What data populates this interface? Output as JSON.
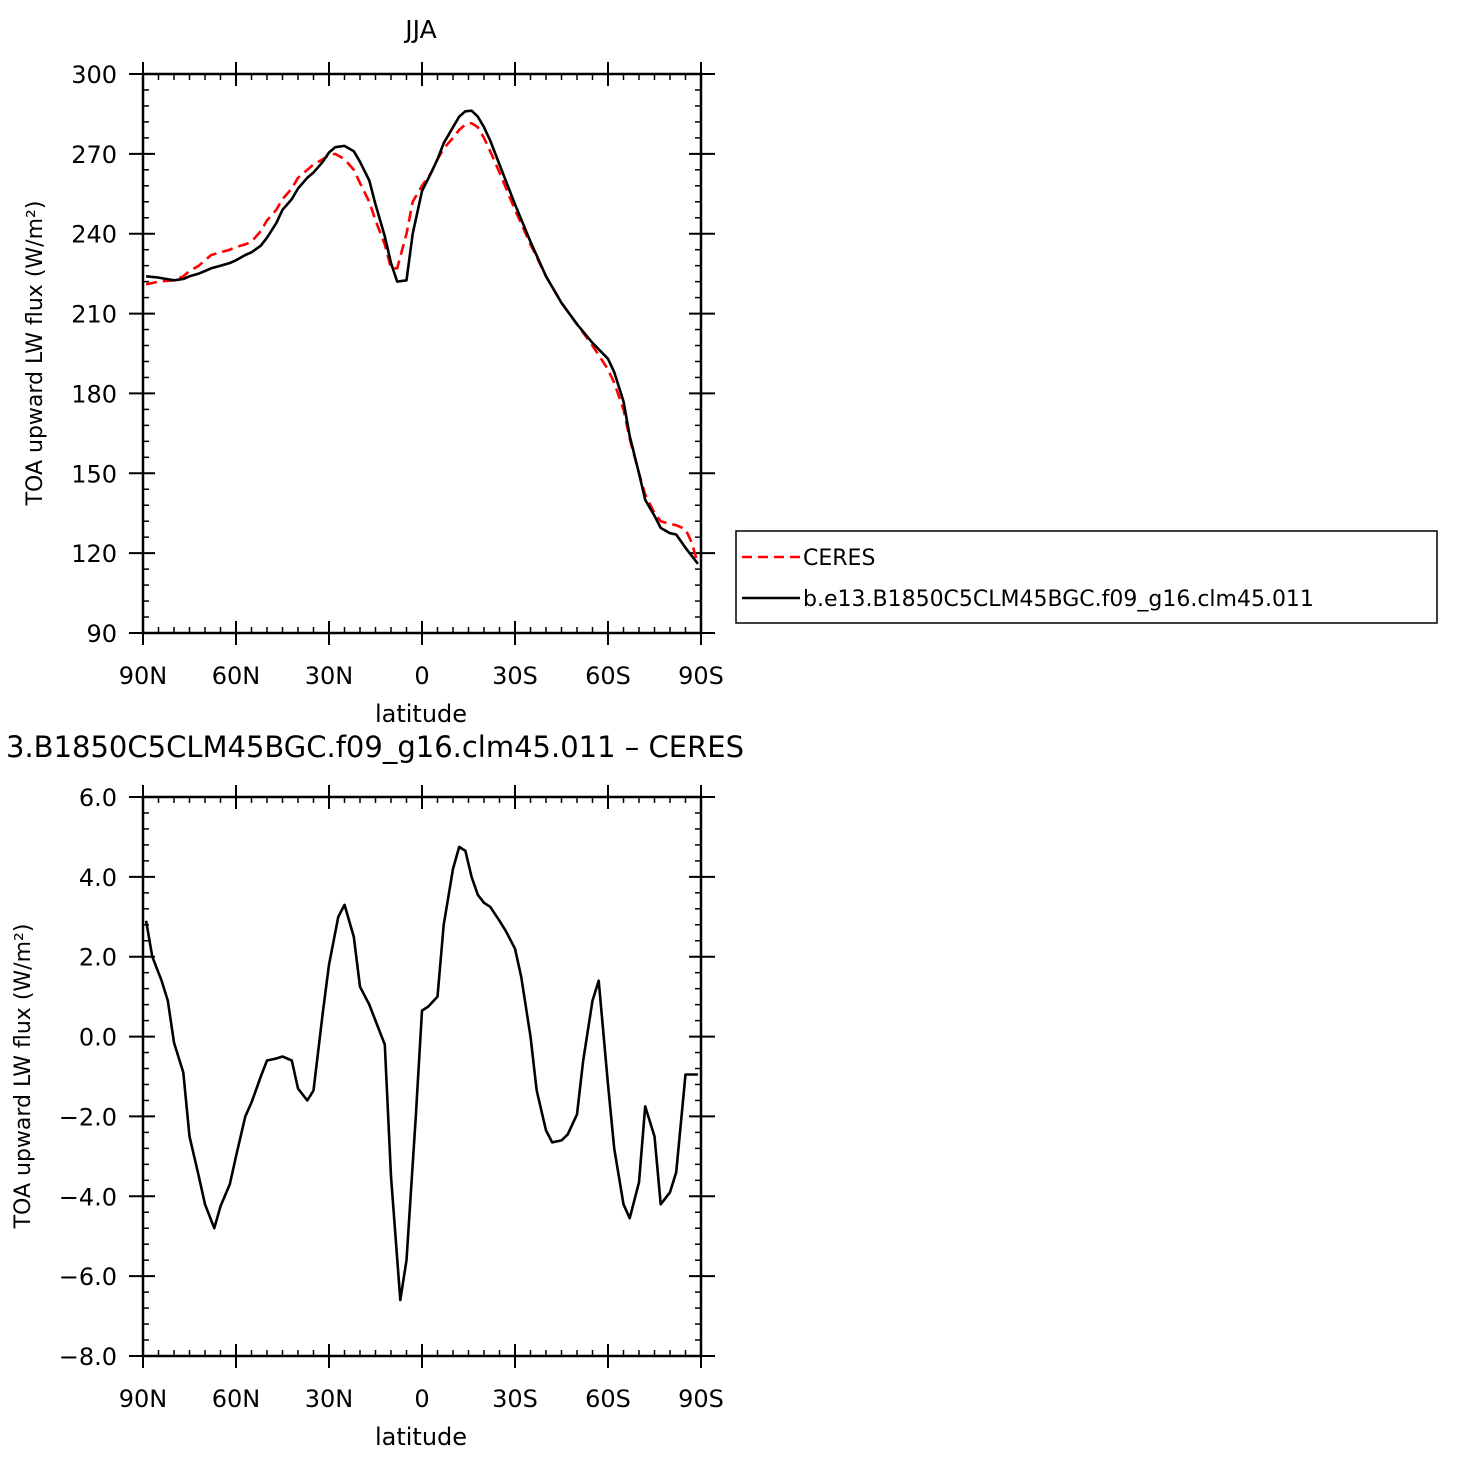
{
  "chart_data": [
    {
      "type": "line",
      "title": "JJA",
      "xlabel": "latitude",
      "ylabel": "TOA upward LW flux (W/m²)",
      "xlim": [
        -90,
        90
      ],
      "ylim": [
        90,
        300
      ],
      "xticks": [
        -90,
        -60,
        -30,
        0,
        30,
        60,
        90
      ],
      "xtick_labels": [
        "90N",
        "60N",
        "30N",
        "0",
        "30S",
        "60S",
        "90S"
      ],
      "yticks": [
        90,
        120,
        150,
        180,
        210,
        240,
        270,
        300
      ],
      "ytick_labels": [
        "90",
        "120",
        "150",
        "180",
        "210",
        "240",
        "270",
        "300"
      ],
      "legend": {
        "placement": "right, outside plot",
        "entries": [
          "CERES",
          "b.e13.B1850C5CLM45BGC.f09_g16.clm45.011"
        ]
      },
      "series": [
        {
          "name": "CERES",
          "color": "#ff0000",
          "style": "dashed",
          "x": [
            -89,
            -85,
            -80,
            -77,
            -75,
            -72,
            -70,
            -68,
            -65,
            -62,
            -60,
            -57,
            -55,
            -52,
            -50,
            -47,
            -45,
            -42,
            -40,
            -37,
            -35,
            -32,
            -30,
            -28,
            -25,
            -22,
            -20,
            -17,
            -15,
            -12,
            -10,
            -8,
            -5,
            -3,
            0,
            3,
            5,
            7,
            10,
            12,
            14,
            16,
            18,
            20,
            22,
            25,
            30,
            35,
            40,
            45,
            50,
            55,
            60,
            62,
            65,
            67,
            70,
            72,
            75,
            77,
            80,
            82,
            85,
            87,
            89
          ],
          "y": [
            221,
            222,
            222.5,
            224,
            226,
            228,
            230,
            232,
            233,
            234,
            235,
            236,
            237,
            241,
            245,
            249,
            253,
            257,
            261,
            264,
            266,
            268,
            269.5,
            270,
            268,
            264,
            259,
            252,
            245,
            236,
            227,
            227,
            240,
            252,
            258,
            263,
            268,
            272,
            276,
            279,
            281,
            281.5,
            280,
            276,
            271,
            263,
            249,
            236,
            224,
            214,
            206,
            198,
            189,
            184,
            174,
            163,
            150,
            142,
            135,
            132,
            131,
            130.5,
            129,
            124,
            116
          ]
        },
        {
          "name": "b.e13.B1850C5CLM45BGC.f09_g16.clm45.011",
          "color": "#000000",
          "style": "solid",
          "x": [
            -89,
            -85,
            -80,
            -77,
            -75,
            -72,
            -70,
            -68,
            -65,
            -62,
            -60,
            -57,
            -55,
            -52,
            -50,
            -47,
            -45,
            -42,
            -40,
            -37,
            -35,
            -32,
            -30,
            -28,
            -25,
            -22,
            -20,
            -17,
            -15,
            -12,
            -10,
            -8,
            -5,
            -3,
            0,
            3,
            5,
            7,
            10,
            12,
            14,
            16,
            18,
            20,
            22,
            25,
            30,
            35,
            40,
            45,
            50,
            55,
            60,
            62,
            65,
            67,
            70,
            72,
            75,
            77,
            80,
            82,
            85,
            87,
            89
          ],
          "y": [
            224,
            223.5,
            222.5,
            223,
            224,
            225,
            226,
            227,
            228,
            229,
            230,
            232,
            233,
            235.5,
            238.5,
            244,
            249,
            253,
            257,
            261,
            263,
            267,
            270.5,
            272.5,
            273,
            271,
            267,
            260,
            251,
            239,
            229,
            222,
            222.5,
            240,
            256,
            263,
            268,
            274,
            280,
            284,
            286,
            286.2,
            284,
            280,
            275,
            266,
            251,
            237,
            224,
            214,
            206,
            199,
            193,
            188,
            177,
            164,
            150,
            140,
            134,
            129.5,
            127.5,
            127,
            122,
            119,
            116
          ]
        }
      ]
    },
    {
      "type": "line",
      "title": "3.B1850C5CLM45BGC.f09_g16.clm45.011 – CERES",
      "xlabel": "latitude",
      "ylabel": "TOA upward LW flux (W/m²)",
      "xlim": [
        -90,
        90
      ],
      "ylim": [
        -8,
        6
      ],
      "xticks": [
        -90,
        -60,
        -30,
        0,
        30,
        60,
        90
      ],
      "xtick_labels": [
        "90N",
        "60N",
        "30N",
        "0",
        "30S",
        "60S",
        "90S"
      ],
      "yticks": [
        -8,
        -6,
        -4,
        -2,
        0,
        2,
        4,
        6
      ],
      "ytick_labels": [
        "−8.0",
        "−6.0",
        "−4.0",
        "−2.0",
        "0.0",
        "2.0",
        "4.0",
        "6.0"
      ],
      "series": [
        {
          "color": "#000000",
          "style": "solid",
          "x": [
            -89,
            -87,
            -84,
            -82,
            -80,
            -77,
            -75,
            -72,
            -70,
            -67,
            -65,
            -62,
            -60,
            -57,
            -55,
            -52,
            -50,
            -47,
            -45,
            -42,
            -40,
            -37,
            -35,
            -32,
            -30,
            -27,
            -25,
            -22,
            -20,
            -17,
            -15,
            -12,
            -10,
            -7,
            -5,
            -2,
            0,
            2,
            5,
            7,
            10,
            12,
            14,
            16,
            18,
            20,
            22,
            25,
            27,
            30,
            32,
            35,
            37,
            40,
            42,
            45,
            47,
            50,
            52,
            55,
            57,
            60,
            62,
            65,
            67,
            70,
            72,
            75,
            77,
            80,
            82,
            85,
            87,
            89
          ],
          "y": [
            2.9,
            2.0,
            1.4,
            0.9,
            -0.15,
            -0.9,
            -2.5,
            -3.5,
            -4.2,
            -4.8,
            -4.25,
            -3.7,
            -3.0,
            -2.0,
            -1.65,
            -1.0,
            -0.6,
            -0.55,
            -0.5,
            -0.6,
            -1.3,
            -1.6,
            -1.35,
            0.6,
            1.8,
            3.0,
            3.3,
            2.5,
            1.25,
            0.8,
            0.4,
            -0.2,
            -3.5,
            -6.6,
            -5.6,
            -2.0,
            0.65,
            0.75,
            1.0,
            2.8,
            4.2,
            4.75,
            4.65,
            4.0,
            3.55,
            3.35,
            3.25,
            2.9,
            2.65,
            2.2,
            1.5,
            0.0,
            -1.35,
            -2.35,
            -2.65,
            -2.6,
            -2.45,
            -1.95,
            -0.6,
            0.9,
            1.4,
            -1.2,
            -2.8,
            -4.2,
            -4.55,
            -3.65,
            -1.75,
            -2.5,
            -4.2,
            -3.9,
            -3.4,
            -0.95,
            -0.95,
            -0.95
          ]
        }
      ]
    }
  ]
}
